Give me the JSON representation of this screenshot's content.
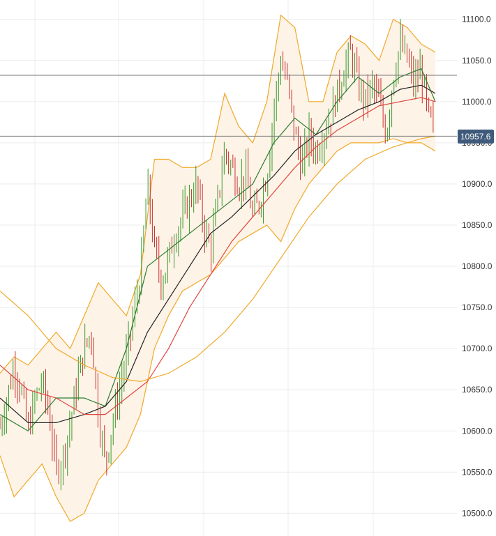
{
  "chart_data": {
    "type": "candlestick",
    "title": "",
    "xlabel": "",
    "ylabel": "",
    "ylim": [
      10480,
      11115
    ],
    "y_axis_position": "right",
    "y_ticks": [
      10500,
      10550,
      10600,
      10650,
      10700,
      10750,
      10800,
      10850,
      10900,
      10950,
      11000,
      11050,
      11100
    ],
    "y_tick_labels": [
      "10500.0",
      "10550.0",
      "10600.0",
      "10650.0",
      "10700.0",
      "10750.0",
      "10800.0",
      "10850.0",
      "10900.0",
      "10950.0",
      "11000.0",
      "11050.0",
      "11100.0"
    ],
    "grid": true,
    "last_price": 10957.6,
    "last_price_label": "10957.6",
    "horizontal_levels": [
      11032,
      10958
    ],
    "colors": {
      "up": "#3a9a2c",
      "down": "#c8322f",
      "bollinger": "#f0a92a",
      "bollinger_fill": "#fdf3e7",
      "ma_fast": "#2e7d32",
      "ma_mid": "#222222",
      "ma_slow": "#e0463f",
      "ma_long": "#f0a92a",
      "level_line": "#777777",
      "badge": "#3f5a7a"
    },
    "price_path": [
      [
        0,
        10605
      ],
      [
        10,
        10640
      ],
      [
        20,
        10680
      ],
      [
        30,
        10650
      ],
      [
        40,
        10600
      ],
      [
        50,
        10640
      ],
      [
        60,
        10660
      ],
      [
        70,
        10620
      ],
      [
        80,
        10550
      ],
      [
        90,
        10570
      ],
      [
        100,
        10610
      ],
      [
        110,
        10660
      ],
      [
        120,
        10700
      ],
      [
        130,
        10720
      ],
      [
        140,
        10620
      ],
      [
        150,
        10560
      ],
      [
        160,
        10610
      ],
      [
        170,
        10650
      ],
      [
        180,
        10690
      ],
      [
        190,
        10740
      ],
      [
        200,
        10790
      ],
      [
        210,
        10900
      ],
      [
        220,
        10820
      ],
      [
        230,
        10780
      ],
      [
        240,
        10810
      ],
      [
        250,
        10840
      ],
      [
        260,
        10860
      ],
      [
        270,
        10880
      ],
      [
        280,
        10900
      ],
      [
        290,
        10850
      ],
      [
        300,
        10820
      ],
      [
        310,
        10880
      ],
      [
        320,
        10940
      ],
      [
        330,
        10920
      ],
      [
        340,
        10900
      ],
      [
        350,
        10910
      ],
      [
        360,
        10860
      ],
      [
        370,
        10880
      ],
      [
        380,
        10910
      ],
      [
        390,
        10990
      ],
      [
        400,
        11050
      ],
      [
        410,
        11020
      ],
      [
        420,
        10960
      ],
      [
        430,
        10920
      ],
      [
        440,
        10960
      ],
      [
        450,
        10940
      ],
      [
        460,
        10960
      ],
      [
        470,
        10980
      ],
      [
        480,
        11010
      ],
      [
        490,
        11040
      ],
      [
        500,
        11060
      ],
      [
        510,
        11020
      ],
      [
        520,
        11000
      ],
      [
        530,
        11020
      ],
      [
        540,
        11000
      ],
      [
        550,
        10960
      ],
      [
        560,
        11030
      ],
      [
        570,
        11070
      ],
      [
        580,
        11050
      ],
      [
        590,
        11020
      ],
      [
        600,
        11040
      ],
      [
        610,
        10980
      ],
      [
        620,
        10965
      ]
    ],
    "moving_averages": [
      {
        "key": "ma_fast",
        "points": [
          [
            0,
            10620
          ],
          [
            40,
            10600
          ],
          [
            80,
            10640
          ],
          [
            120,
            10640
          ],
          [
            150,
            10630
          ],
          [
            180,
            10700
          ],
          [
            210,
            10800
          ],
          [
            240,
            10820
          ],
          [
            270,
            10840
          ],
          [
            300,
            10860
          ],
          [
            330,
            10880
          ],
          [
            360,
            10900
          ],
          [
            390,
            10950
          ],
          [
            420,
            10980
          ],
          [
            450,
            10960
          ],
          [
            480,
            11000
          ],
          [
            510,
            11030
          ],
          [
            540,
            11010
          ],
          [
            570,
            11030
          ],
          [
            600,
            11040
          ],
          [
            620,
            11000
          ]
        ]
      },
      {
        "key": "ma_mid",
        "points": [
          [
            0,
            10640
          ],
          [
            40,
            10610
          ],
          [
            80,
            10610
          ],
          [
            120,
            10620
          ],
          [
            150,
            10630
          ],
          [
            180,
            10660
          ],
          [
            210,
            10720
          ],
          [
            240,
            10760
          ],
          [
            270,
            10800
          ],
          [
            300,
            10840
          ],
          [
            330,
            10860
          ],
          [
            360,
            10885
          ],
          [
            390,
            10910
          ],
          [
            420,
            10940
          ],
          [
            450,
            10960
          ],
          [
            480,
            10975
          ],
          [
            510,
            10990
          ],
          [
            540,
            11000
          ],
          [
            570,
            11015
          ],
          [
            600,
            11020
          ],
          [
            620,
            11010
          ]
        ]
      },
      {
        "key": "ma_slow",
        "points": [
          [
            0,
            10680
          ],
          [
            40,
            10650
          ],
          [
            80,
            10640
          ],
          [
            120,
            10620
          ],
          [
            150,
            10620
          ],
          [
            180,
            10640
          ],
          [
            210,
            10660
          ],
          [
            240,
            10700
          ],
          [
            270,
            10750
          ],
          [
            300,
            10790
          ],
          [
            330,
            10830
          ],
          [
            360,
            10860
          ],
          [
            390,
            10890
          ],
          [
            420,
            10920
          ],
          [
            450,
            10945
          ],
          [
            480,
            10965
          ],
          [
            510,
            10980
          ],
          [
            540,
            10995
          ],
          [
            570,
            11000
          ],
          [
            600,
            11005
          ],
          [
            620,
            11000
          ]
        ]
      },
      {
        "key": "ma_long",
        "points": [
          [
            0,
            10770
          ],
          [
            40,
            10740
          ],
          [
            80,
            10700
          ],
          [
            120,
            10680
          ],
          [
            160,
            10665
          ],
          [
            200,
            10660
          ],
          [
            240,
            10670
          ],
          [
            280,
            10690
          ],
          [
            320,
            10720
          ],
          [
            360,
            10760
          ],
          [
            400,
            10810
          ],
          [
            440,
            10860
          ],
          [
            480,
            10900
          ],
          [
            520,
            10930
          ],
          [
            560,
            10945
          ],
          [
            600,
            10955
          ],
          [
            620,
            10958
          ]
        ]
      }
    ],
    "bollinger": {
      "upper": [
        [
          0,
          10670
        ],
        [
          20,
          10690
        ],
        [
          40,
          10680
        ],
        [
          60,
          10700
        ],
        [
          80,
          10720
        ],
        [
          100,
          10700
        ],
        [
          120,
          10740
        ],
        [
          140,
          10780
        ],
        [
          160,
          10760
        ],
        [
          180,
          10740
        ],
        [
          200,
          10790
        ],
        [
          220,
          10930
        ],
        [
          240,
          10930
        ],
        [
          260,
          10920
        ],
        [
          280,
          10920
        ],
        [
          300,
          10930
        ],
        [
          320,
          11010
        ],
        [
          340,
          10970
        ],
        [
          360,
          10950
        ],
        [
          380,
          11000
        ],
        [
          400,
          11105
        ],
        [
          420,
          11090
        ],
        [
          440,
          11000
        ],
        [
          460,
          11000
        ],
        [
          480,
          11060
        ],
        [
          500,
          11080
        ],
        [
          520,
          11070
        ],
        [
          540,
          11050
        ],
        [
          560,
          11100
        ],
        [
          580,
          11090
        ],
        [
          600,
          11070
        ],
        [
          620,
          11060
        ]
      ],
      "lower": [
        [
          0,
          10570
        ],
        [
          20,
          10520
        ],
        [
          40,
          10540
        ],
        [
          60,
          10560
        ],
        [
          80,
          10520
        ],
        [
          100,
          10490
        ],
        [
          120,
          10500
        ],
        [
          140,
          10540
        ],
        [
          160,
          10560
        ],
        [
          180,
          10580
        ],
        [
          200,
          10620
        ],
        [
          220,
          10700
        ],
        [
          240,
          10740
        ],
        [
          260,
          10770
        ],
        [
          280,
          10780
        ],
        [
          300,
          10790
        ],
        [
          320,
          10810
        ],
        [
          340,
          10830
        ],
        [
          360,
          10840
        ],
        [
          380,
          10850
        ],
        [
          400,
          10830
        ],
        [
          420,
          10870
        ],
        [
          440,
          10900
        ],
        [
          460,
          10920
        ],
        [
          480,
          10940
        ],
        [
          500,
          10950
        ],
        [
          520,
          10950
        ],
        [
          540,
          10950
        ],
        [
          560,
          10955
        ],
        [
          580,
          10950
        ],
        [
          600,
          10950
        ],
        [
          620,
          10940
        ]
      ]
    }
  }
}
